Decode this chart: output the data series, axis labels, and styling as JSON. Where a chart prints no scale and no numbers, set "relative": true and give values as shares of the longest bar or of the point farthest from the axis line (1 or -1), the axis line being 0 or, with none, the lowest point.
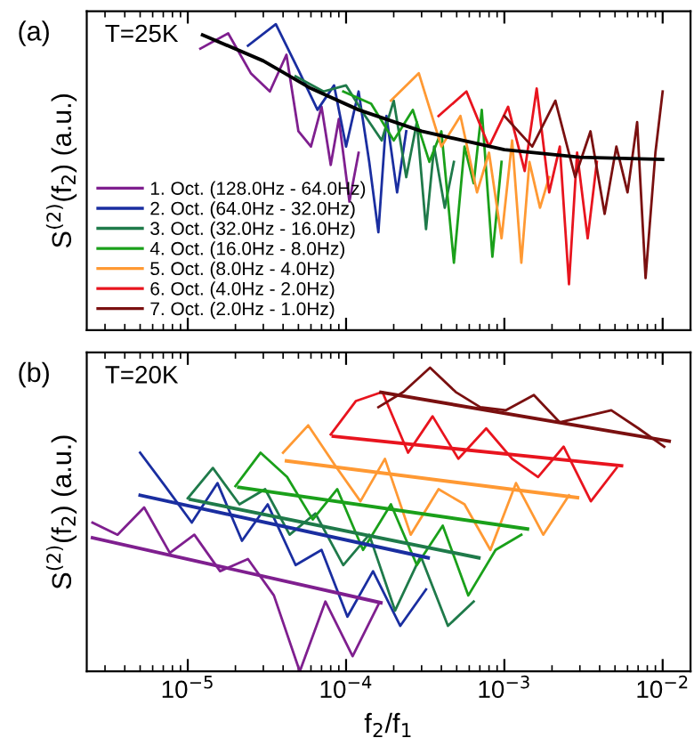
{
  "chart_data": [
    {
      "type": "line",
      "relative": true,
      "log": "x",
      "tick_labels": false,
      "legend": "bottom left",
      "grid": false,
      "ylabel": "S$^{(2)}$(f$_{2}$) (a.u.)",
      "annotations": [
        "(a)",
        "T=25K"
      ],
      "xlim": [
        2.3e-06,
        0.015
      ],
      "xticks": [
        {
          "value": 1e-05,
          "label": null
        },
        {
          "value": 0.0001,
          "label": null
        },
        {
          "value": 0.001,
          "label": null
        },
        {
          "value": 0.01,
          "label": null
        }
      ],
      "series": [
        {
          "name": "1. Oct. (128.0Hz - 64.0Hz)",
          "color": "#7f1f8f",
          "x": [
            1.2e-05,
            1.8e-05,
            2.5e-05,
            3.3e-05,
            4.2e-05,
            5e-05,
            6e-05,
            7e-05,
            8e-05,
            9e-05,
            0.000105,
            0.00012
          ],
          "values": [
            0.92,
            0.97,
            0.84,
            0.78,
            0.9,
            0.65,
            0.6,
            0.73,
            0.54,
            0.69,
            0.42,
            0.58
          ]
        },
        {
          "name": "2. Oct. (64.0Hz - 32.0Hz)",
          "color": "#1a2ea0",
          "x": [
            2.4e-05,
            3.6e-05,
            5e-05,
            6.6e-05,
            8.4e-05,
            0.0001,
            0.00012,
            0.00014,
            0.00016,
            0.00018,
            0.00021,
            0.00024
          ],
          "values": [
            0.93,
            1.0,
            0.85,
            0.72,
            0.8,
            0.6,
            0.78,
            0.55,
            0.32,
            0.7,
            0.45,
            0.65
          ]
        },
        {
          "name": "3. Oct. (32.0Hz - 16.0Hz)",
          "color": "#1f7a4a",
          "x": [
            4.8e-05,
            7.2e-05,
            0.0001,
            0.000132,
            0.000168,
            0.0002,
            0.00024,
            0.00028,
            0.00032,
            0.00036,
            0.00042,
            0.00048
          ],
          "values": [
            0.83,
            0.78,
            0.8,
            0.7,
            0.62,
            0.75,
            0.5,
            0.68,
            0.33,
            0.6,
            0.4,
            0.55
          ]
        },
        {
          "name": "4. Oct. (16.0Hz - 8.0Hz)",
          "color": "#1aa01a",
          "x": [
            9.6e-05,
            0.000144,
            0.0002,
            0.000264,
            0.000336,
            0.0004,
            0.00048,
            0.00056,
            0.00064,
            0.00072,
            0.00084,
            0.00096
          ],
          "values": [
            0.78,
            0.74,
            0.62,
            0.72,
            0.55,
            0.65,
            0.22,
            0.6,
            0.48,
            0.72,
            0.24,
            0.55
          ]
        },
        {
          "name": "5. Oct. (8.0Hz - 4.0Hz)",
          "color": "#ff9933",
          "x": [
            0.000192,
            0.000288,
            0.0004,
            0.000528,
            0.000672,
            0.0008,
            0.00096,
            0.00112,
            0.00128,
            0.00144,
            0.00168,
            0.00192
          ],
          "values": [
            0.75,
            0.84,
            0.6,
            0.7,
            0.45,
            0.58,
            0.3,
            0.62,
            0.22,
            0.55,
            0.4,
            0.5
          ]
        },
        {
          "name": "6. Oct. (4.0Hz - 2.0Hz)",
          "color": "#e8141e",
          "x": [
            0.000384,
            0.000576,
            0.0008,
            0.001056,
            0.001344,
            0.0016,
            0.00192,
            0.00224,
            0.00256,
            0.00288,
            0.00336,
            0.00384
          ],
          "values": [
            0.7,
            0.78,
            0.6,
            0.73,
            0.52,
            0.79,
            0.45,
            0.6,
            0.15,
            0.58,
            0.3,
            0.55
          ]
        },
        {
          "name": "7. Oct. (2.0Hz - 1.0Hz)",
          "color": "#7a1010",
          "x": [
            0.001,
            0.0015,
            0.0021,
            0.0028,
            0.0035,
            0.0043,
            0.0051,
            0.006,
            0.0069,
            0.0078,
            0.009,
            0.01
          ],
          "values": [
            0.7,
            0.6,
            0.75,
            0.5,
            0.65,
            0.38,
            0.6,
            0.45,
            0.68,
            0.17,
            0.58,
            0.78
          ]
        },
        {
          "type": "line",
          "color": "#000000",
          "x": [
            1.24e-05,
            3e-05,
            6e-05,
            0.00012,
            0.0003,
            0.001,
            0.003,
            0.01
          ],
          "values": [
            0.965,
            0.88,
            0.79,
            0.72,
            0.65,
            0.59,
            0.565,
            0.558
          ]
        }
      ]
    },
    {
      "type": "line",
      "relative": true,
      "log": "x",
      "tick_labels": "x",
      "grid": false,
      "ylabel": "S$^{(2)}$(f$_{2}$) (a.u.)",
      "xlabel": "f$_{2}$/f$_{1}$",
      "annotations": [
        "(b)",
        "T=20K"
      ],
      "xlim": [
        2.3e-06,
        0.015
      ],
      "xticks": [
        {
          "value": 1e-05,
          "label": "10$^{−5}$"
        },
        {
          "value": 0.0001,
          "label": "10$^{−4}$"
        },
        {
          "value": 0.001,
          "label": "10$^{−3}$"
        },
        {
          "value": 0.01,
          "label": "10$^{−2}$"
        }
      ],
      "series": [
        {
          "color": "#7f1f8f",
          "x": [
            2.5e-06,
            3.6e-06,
            5.3e-06,
            7.7e-06,
            1.1e-05,
            1.6e-05,
            2.4e-05,
            3.5e-05,
            5.1e-05,
            7.4e-05,
            0.00011,
            0.00016
          ],
          "values": [
            0.49,
            0.45,
            0.54,
            0.39,
            0.45,
            0.33,
            0.37,
            0.25,
            0.0,
            0.23,
            0.05,
            0.22
          ]
        },
        {
          "color": "#1a2ea0",
          "x": [
            5e-06,
            7.2e-06,
            1.06e-05,
            1.54e-05,
            2.2e-05,
            3.2e-05,
            4.8e-05,
            7e-05,
            0.000102,
            0.000148,
            0.00022,
            0.00032
          ],
          "values": [
            0.72,
            0.61,
            0.49,
            0.62,
            0.43,
            0.55,
            0.35,
            0.4,
            0.18,
            0.33,
            0.15,
            0.27
          ]
        },
        {
          "color": "#1f7a4a",
          "x": [
            1e-05,
            1.44e-05,
            2.12e-05,
            3.08e-05,
            4.4e-05,
            6.4e-05,
            9.6e-05,
            0.00014,
            0.000204,
            0.000296,
            0.00044,
            0.00064
          ],
          "values": [
            0.57,
            0.67,
            0.55,
            0.6,
            0.45,
            0.52,
            0.35,
            0.45,
            0.2,
            0.38,
            0.15,
            0.23
          ]
        },
        {
          "color": "#1aa01a",
          "x": [
            2e-05,
            2.88e-05,
            4.24e-05,
            6.16e-05,
            8.8e-05,
            0.000128,
            0.000192,
            0.00028,
            0.000408,
            0.000592,
            0.00088,
            0.00128
          ],
          "values": [
            0.61,
            0.72,
            0.64,
            0.5,
            0.6,
            0.4,
            0.55,
            0.35,
            0.48,
            0.25,
            0.4,
            0.45
          ]
        },
        {
          "color": "#ff9933",
          "x": [
            4e-05,
            5.76e-05,
            8.48e-05,
            0.0001232,
            0.000176,
            0.000256,
            0.000384,
            0.00056,
            0.000816,
            0.001184,
            0.00176,
            0.00256
          ],
          "values": [
            0.72,
            0.81,
            0.68,
            0.56,
            0.7,
            0.45,
            0.6,
            0.55,
            0.4,
            0.62,
            0.45,
            0.58
          ]
        },
        {
          "color": "#e8141e",
          "x": [
            8e-05,
            0.0001152,
            0.0001696,
            0.0002464,
            0.000352,
            0.000512,
            0.000768,
            0.00112,
            0.001632,
            0.002368,
            0.00352,
            0.00512
          ],
          "values": [
            0.78,
            0.89,
            0.92,
            0.72,
            0.84,
            0.7,
            0.8,
            0.7,
            0.64,
            0.74,
            0.56,
            0.67
          ]
        },
        {
          "color": "#7a1010",
          "x": [
            0.00016,
            0.0002304,
            0.0003392,
            0.0004928,
            0.000704,
            0.001024,
            0.001536,
            0.00224,
            0.003264,
            0.004736,
            0.00704,
            0.01024
          ],
          "values": [
            0.87,
            0.92,
            1.0,
            0.92,
            0.87,
            0.86,
            0.91,
            0.82,
            0.84,
            0.86,
            0.8,
            0.74
          ]
        },
        {
          "color": "#7f1f8f",
          "x": [
            2.5e-06,
            0.000166
          ],
          "values": [
            0.44,
            0.226
          ]
        },
        {
          "color": "#1a2ea0",
          "x": [
            5e-06,
            0.00033
          ],
          "values": [
            0.58,
            0.374
          ]
        },
        {
          "color": "#1f7a4a",
          "x": [
            1.04e-05,
            0.00069
          ],
          "values": [
            0.566,
            0.374
          ]
        },
        {
          "color": "#1aa01a",
          "x": [
            2.1e-05,
            0.0014
          ],
          "values": [
            0.606,
            0.469
          ]
        },
        {
          "color": "#ff9933",
          "x": [
            4.2e-05,
            0.0029
          ],
          "values": [
            0.693,
            0.572
          ]
        },
        {
          "color": "#e8141e",
          "x": [
            8.3e-05,
            0.0055
          ],
          "values": [
            0.774,
            0.677
          ]
        },
        {
          "color": "#7a1010",
          "x": [
            0.000166,
            0.011
          ],
          "values": [
            0.919,
            0.758
          ]
        }
      ]
    }
  ]
}
